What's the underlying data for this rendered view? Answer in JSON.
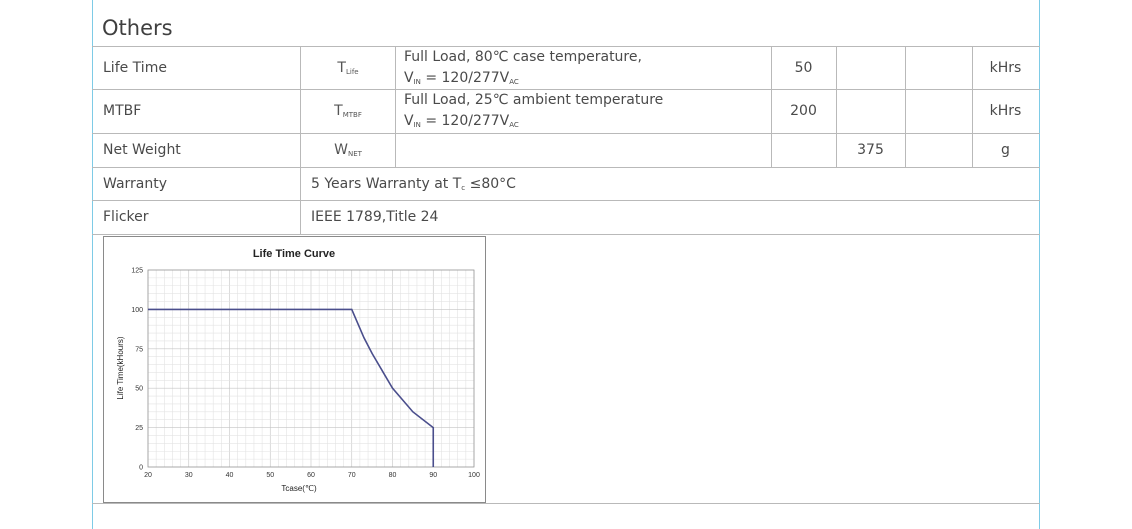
{
  "section": {
    "title": "Others"
  },
  "rows": [
    {
      "param": "Life Time",
      "sym_main": "T",
      "sym_sub": "Life",
      "cond_line1": "Full Load, 80℃ case temperature,",
      "cond_line2_main": "V",
      "cond_line2_sub": "IN",
      "cond_line2_rest": " = 120/277V",
      "cond_line2_sub2": "AC",
      "min": "",
      "typ": "50",
      "max": "",
      "unit": "kHrs"
    },
    {
      "param": "MTBF",
      "sym_main": "T",
      "sym_sub": "MTBF",
      "cond_line1": "Full Load, 25℃ ambient temperature",
      "cond_line2_main": "V",
      "cond_line2_sub": "IN",
      "cond_line2_rest": " = 120/277V",
      "cond_line2_sub2": "AC",
      "min": "",
      "typ": "200",
      "max": "",
      "unit": "kHrs"
    },
    {
      "param": "Net Weight",
      "sym_main": "W",
      "sym_sub": "NET",
      "min": "",
      "typ": "",
      "max": "375",
      "unit": "g"
    }
  ],
  "warranty": {
    "label": "Warranty",
    "text_main": "5 Years Warranty at T",
    "text_sub": "c",
    "text_rest": " ≤80°C"
  },
  "flicker": {
    "label": "Flicker",
    "text": "IEEE 1789,Title 24"
  },
  "chart_data": {
    "type": "line",
    "title": "Life Time Curve",
    "xlabel": "Tcase(℃)",
    "ylabel": "Life Time(kHours)",
    "xlim": [
      20,
      100
    ],
    "ylim": [
      0,
      125
    ],
    "xticks": [
      20,
      30,
      40,
      50,
      60,
      70,
      80,
      90,
      100
    ],
    "yticks": [
      0,
      25,
      50,
      75,
      100,
      125
    ],
    "grid": true,
    "line_color": "#4a4e8c",
    "series": [
      {
        "x": [
          20,
          70,
          73,
          75,
          80,
          85,
          90,
          90
        ],
        "y": [
          100,
          100,
          82,
          72,
          50,
          35,
          25,
          0
        ]
      }
    ]
  }
}
